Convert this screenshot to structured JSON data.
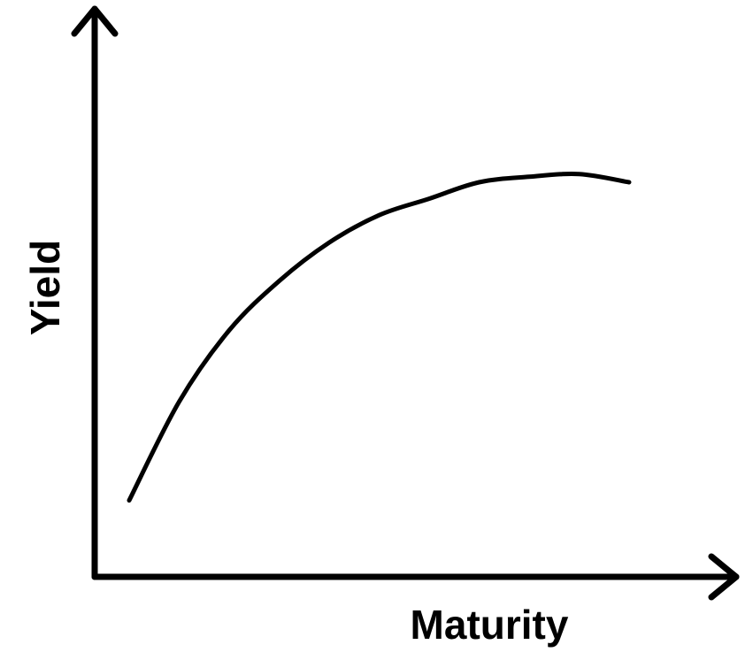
{
  "chart_data": {
    "type": "line",
    "title": "",
    "xlabel": "Maturity",
    "ylabel": "Yield",
    "grid": false,
    "legend": "none",
    "x": [
      0.0,
      0.1,
      0.2,
      0.3,
      0.4,
      0.5,
      0.6,
      0.7,
      0.8,
      0.9,
      1.0
    ],
    "series": [
      {
        "values": [
          0.12,
          0.3,
          0.43,
          0.52,
          0.59,
          0.64,
          0.67,
          0.7,
          0.71,
          0.715,
          0.7
        ]
      }
    ],
    "xlim": [
      0,
      1
    ],
    "ylim": [
      0,
      1
    ],
    "colors": {
      "line": "#000000",
      "axes": "#000000"
    }
  }
}
